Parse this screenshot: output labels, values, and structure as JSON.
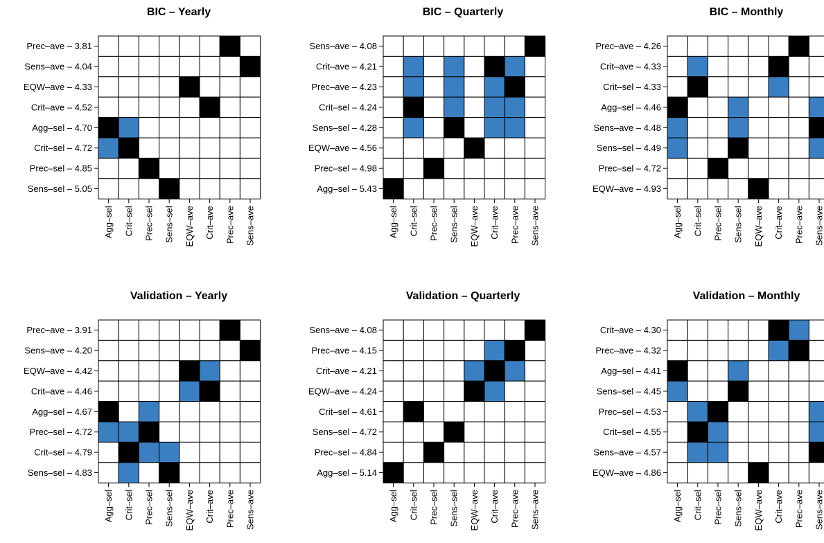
{
  "colors": {
    "sel": "#000000",
    "eq": "#3a7fc1",
    "empty": "#ffffff",
    "grid": "#000000"
  },
  "chart_data": [
    {
      "type": "heatmap",
      "title": "BIC – Yearly",
      "columns": [
        "Agg–sel",
        "Crit–sel",
        "Prec–sel",
        "Sens–sel",
        "EQW–ave",
        "Crit–ave",
        "Prec–ave",
        "Sens–ave"
      ],
      "rows": [
        {
          "label": "Prec–ave – 3.81",
          "cells": [
            0,
            0,
            0,
            0,
            0,
            0,
            1,
            0
          ]
        },
        {
          "label": "Sens–ave – 4.04",
          "cells": [
            0,
            0,
            0,
            0,
            0,
            0,
            0,
            1
          ]
        },
        {
          "label": "EQW–ave – 4.33",
          "cells": [
            0,
            0,
            0,
            0,
            1,
            0,
            0,
            0
          ]
        },
        {
          "label": "Crit–ave – 4.52",
          "cells": [
            0,
            0,
            0,
            0,
            0,
            1,
            0,
            0
          ]
        },
        {
          "label": "Agg–sel – 4.70",
          "cells": [
            1,
            2,
            0,
            0,
            0,
            0,
            0,
            0
          ]
        },
        {
          "label": "Crit–sel – 4.72",
          "cells": [
            2,
            1,
            0,
            0,
            0,
            0,
            0,
            0
          ]
        },
        {
          "label": "Prec–sel – 4.85",
          "cells": [
            0,
            0,
            1,
            0,
            0,
            0,
            0,
            0
          ]
        },
        {
          "label": "Sens–sel – 5.05",
          "cells": [
            0,
            0,
            0,
            1,
            0,
            0,
            0,
            0
          ]
        }
      ]
    },
    {
      "type": "heatmap",
      "title": "BIC – Quarterly",
      "columns": [
        "Agg–sel",
        "Crit–sel",
        "Prec–sel",
        "Sens–sel",
        "EQW–ave",
        "Crit–ave",
        "Prec–ave",
        "Sens–ave"
      ],
      "rows": [
        {
          "label": "Sens–ave – 4.08",
          "cells": [
            0,
            0,
            0,
            0,
            0,
            0,
            0,
            1
          ]
        },
        {
          "label": "Crit–ave – 4.21",
          "cells": [
            0,
            2,
            0,
            2,
            0,
            1,
            2,
            0
          ]
        },
        {
          "label": "Prec–ave – 4.23",
          "cells": [
            0,
            2,
            0,
            2,
            0,
            2,
            1,
            0
          ]
        },
        {
          "label": "Crit–sel – 4.24",
          "cells": [
            0,
            1,
            0,
            2,
            0,
            2,
            2,
            0
          ]
        },
        {
          "label": "Sens–sel – 4.28",
          "cells": [
            0,
            2,
            0,
            1,
            0,
            2,
            2,
            0
          ]
        },
        {
          "label": "EQW–ave – 4.56",
          "cells": [
            0,
            0,
            0,
            0,
            1,
            0,
            0,
            0
          ]
        },
        {
          "label": "Prec–sel – 4.98",
          "cells": [
            0,
            0,
            1,
            0,
            0,
            0,
            0,
            0
          ]
        },
        {
          "label": "Agg–sel – 5.43",
          "cells": [
            1,
            0,
            0,
            0,
            0,
            0,
            0,
            0
          ]
        }
      ]
    },
    {
      "type": "heatmap",
      "title": "BIC – Monthly",
      "columns": [
        "Agg–sel",
        "Crit–sel",
        "Prec–sel",
        "Sens–sel",
        "EQW–ave",
        "Crit–ave",
        "Prec–ave",
        "Sens–ave"
      ],
      "rows": [
        {
          "label": "Prec–ave – 4.26",
          "cells": [
            0,
            0,
            0,
            0,
            0,
            0,
            1,
            0
          ]
        },
        {
          "label": "Crit–ave – 4.33",
          "cells": [
            0,
            2,
            0,
            0,
            0,
            1,
            0,
            0
          ]
        },
        {
          "label": "Crit–sel – 4.33",
          "cells": [
            0,
            1,
            0,
            0,
            0,
            2,
            0,
            0
          ]
        },
        {
          "label": "Agg–sel – 4.46",
          "cells": [
            1,
            0,
            0,
            2,
            0,
            0,
            0,
            2
          ]
        },
        {
          "label": "Sens–ave – 4.48",
          "cells": [
            2,
            0,
            0,
            2,
            0,
            0,
            0,
            1
          ]
        },
        {
          "label": "Sens–sel – 4.49",
          "cells": [
            2,
            0,
            0,
            1,
            0,
            0,
            0,
            2
          ]
        },
        {
          "label": "Prec–sel – 4.72",
          "cells": [
            0,
            0,
            1,
            0,
            0,
            0,
            0,
            0
          ]
        },
        {
          "label": "EQW–ave – 4.93",
          "cells": [
            0,
            0,
            0,
            0,
            1,
            0,
            0,
            0
          ]
        }
      ]
    },
    {
      "type": "heatmap",
      "title": "Validation – Yearly",
      "columns": [
        "Agg–sel",
        "Crit–sel",
        "Prec–sel",
        "Sens–sel",
        "EQW–ave",
        "Crit–ave",
        "Prec–ave",
        "Sens–ave"
      ],
      "rows": [
        {
          "label": "Prec–ave – 3.91",
          "cells": [
            0,
            0,
            0,
            0,
            0,
            0,
            1,
            0
          ]
        },
        {
          "label": "Sens–ave – 4.20",
          "cells": [
            0,
            0,
            0,
            0,
            0,
            0,
            0,
            1
          ]
        },
        {
          "label": "EQW–ave – 4.42",
          "cells": [
            0,
            0,
            0,
            0,
            1,
            2,
            0,
            0
          ]
        },
        {
          "label": "Crit–ave – 4.46",
          "cells": [
            0,
            0,
            0,
            0,
            2,
            1,
            0,
            0
          ]
        },
        {
          "label": "Agg–sel – 4.67",
          "cells": [
            1,
            0,
            2,
            0,
            0,
            0,
            0,
            0
          ]
        },
        {
          "label": "Prec–sel – 4.72",
          "cells": [
            2,
            2,
            1,
            0,
            0,
            0,
            0,
            0
          ]
        },
        {
          "label": "Crit–sel – 4.79",
          "cells": [
            0,
            1,
            2,
            2,
            0,
            0,
            0,
            0
          ]
        },
        {
          "label": "Sens–sel – 4.83",
          "cells": [
            0,
            2,
            0,
            1,
            0,
            0,
            0,
            0
          ]
        }
      ]
    },
    {
      "type": "heatmap",
      "title": "Validation – Quarterly",
      "columns": [
        "Agg–sel",
        "Crit–sel",
        "Prec–sel",
        "Sens–sel",
        "EQW–ave",
        "Crit–ave",
        "Prec–ave",
        "Sens–ave"
      ],
      "rows": [
        {
          "label": "Sens–ave – 4.08",
          "cells": [
            0,
            0,
            0,
            0,
            0,
            0,
            0,
            1
          ]
        },
        {
          "label": "Prec–ave – 4.15",
          "cells": [
            0,
            0,
            0,
            0,
            0,
            2,
            1,
            0
          ]
        },
        {
          "label": "Crit–ave – 4.21",
          "cells": [
            0,
            0,
            0,
            0,
            2,
            1,
            2,
            0
          ]
        },
        {
          "label": "EQW–ave – 4.24",
          "cells": [
            0,
            0,
            0,
            0,
            1,
            2,
            0,
            0
          ]
        },
        {
          "label": "Crit–sel – 4.61",
          "cells": [
            0,
            1,
            0,
            0,
            0,
            0,
            0,
            0
          ]
        },
        {
          "label": "Sens–sel – 4.72",
          "cells": [
            0,
            0,
            0,
            1,
            0,
            0,
            0,
            0
          ]
        },
        {
          "label": "Prec–sel – 4.84",
          "cells": [
            0,
            0,
            1,
            0,
            0,
            0,
            0,
            0
          ]
        },
        {
          "label": "Agg–sel – 5.14",
          "cells": [
            1,
            0,
            0,
            0,
            0,
            0,
            0,
            0
          ]
        }
      ]
    },
    {
      "type": "heatmap",
      "title": "Validation – Monthly",
      "columns": [
        "Agg–sel",
        "Crit–sel",
        "Prec–sel",
        "Sens–sel",
        "EQW–ave",
        "Crit–ave",
        "Prec–ave",
        "Sens–ave"
      ],
      "rows": [
        {
          "label": "Crit–ave – 4.30",
          "cells": [
            0,
            0,
            0,
            0,
            0,
            1,
            2,
            0
          ]
        },
        {
          "label": "Prec–ave – 4.32",
          "cells": [
            0,
            0,
            0,
            0,
            0,
            2,
            1,
            0
          ]
        },
        {
          "label": "Agg–sel – 4.41",
          "cells": [
            1,
            0,
            0,
            2,
            0,
            0,
            0,
            0
          ]
        },
        {
          "label": "Sens–sel – 4.45",
          "cells": [
            2,
            0,
            0,
            1,
            0,
            0,
            0,
            0
          ]
        },
        {
          "label": "Prec–sel – 4.53",
          "cells": [
            0,
            2,
            1,
            0,
            0,
            0,
            0,
            2
          ]
        },
        {
          "label": "Crit–sel – 4.55",
          "cells": [
            0,
            1,
            2,
            0,
            0,
            0,
            0,
            2
          ]
        },
        {
          "label": "Sens–ave – 4.57",
          "cells": [
            0,
            2,
            2,
            0,
            0,
            0,
            0,
            1
          ]
        },
        {
          "label": "EQW–ave – 4.86",
          "cells": [
            0,
            0,
            0,
            0,
            1,
            0,
            0,
            0
          ]
        }
      ]
    }
  ]
}
